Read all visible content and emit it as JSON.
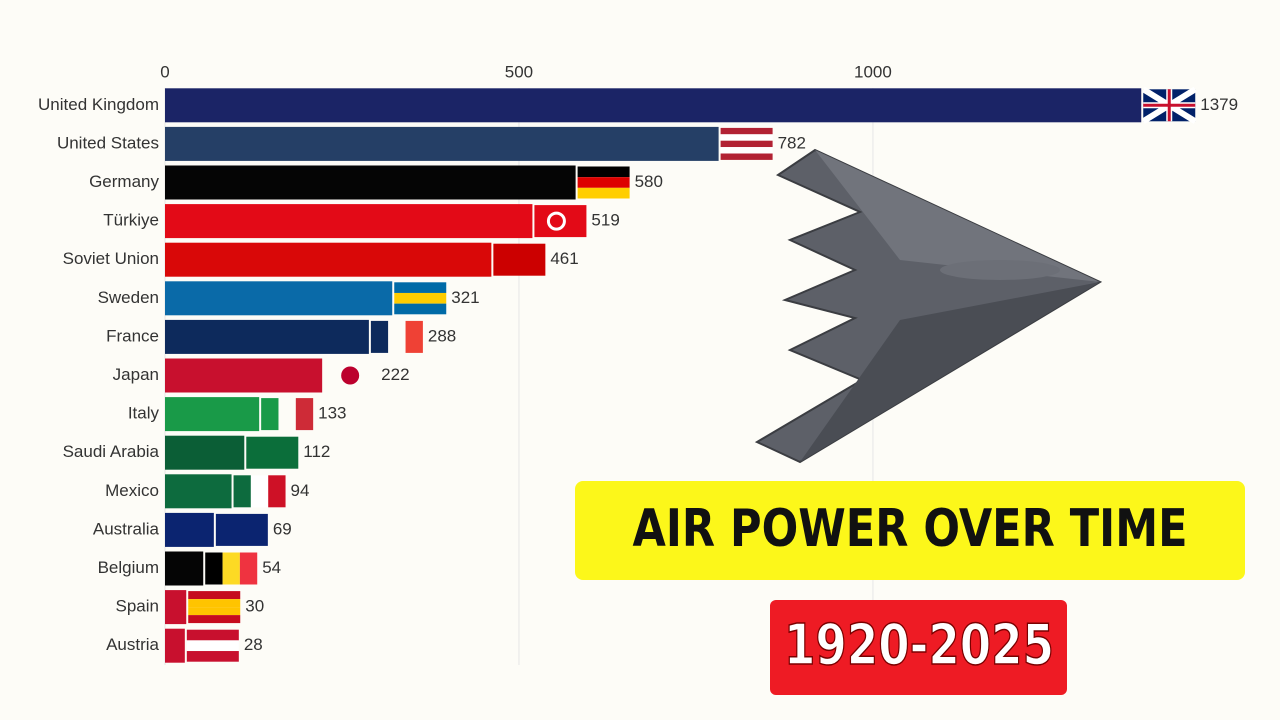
{
  "chart_data": {
    "type": "bar",
    "orientation": "horizontal",
    "title": "AIR POWER OVER TIME",
    "subtitle": "1920-2025",
    "categories": [
      "United Kingdom",
      "United States",
      "Germany",
      "Türkiye",
      "Soviet Union",
      "Sweden",
      "France",
      "Japan",
      "Italy",
      "Saudi Arabia",
      "Mexico",
      "Australia",
      "Belgium",
      "Spain",
      "Austria"
    ],
    "values": [
      1379,
      782,
      580,
      519,
      461,
      321,
      288,
      222,
      133,
      112,
      94,
      69,
      54,
      30,
      28
    ],
    "colors": [
      "#1b2466",
      "#253f66",
      "#050505",
      "#e30a17",
      "#d90808",
      "#0a6aa8",
      "#0d2a5c",
      "#c8102e",
      "#199a48",
      "#0b5e36",
      "#0d6b3e",
      "#0b2470",
      "#050505",
      "#c8102e",
      "#c8102e"
    ],
    "xlim": [
      0,
      1575
    ],
    "xticks": [
      0,
      500,
      1000
    ],
    "grid": true
  }
}
